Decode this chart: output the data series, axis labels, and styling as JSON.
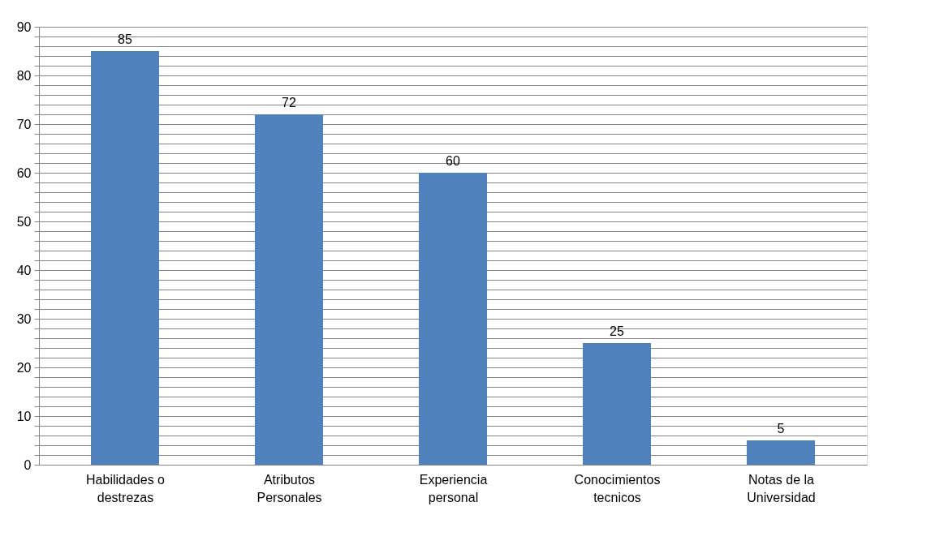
{
  "chart_data": {
    "type": "bar",
    "categories": [
      "Habilidades o\ndestrezas",
      "Atributos\nPersonales",
      "Experiencia\npersonal",
      "Conocimientos\ntecnicos",
      "Notas de la\nUniversidad"
    ],
    "values": [
      85,
      72,
      60,
      25,
      5
    ],
    "color": "#4f81bd",
    "ylim": [
      0,
      90
    ],
    "yticks": [
      0,
      {
        "value": 2,
        "label": null
      },
      {
        "value": 4,
        "label": null
      },
      {
        "value": 6,
        "label": null
      },
      {
        "value": 8,
        "label": null
      },
      10,
      {
        "value": 12,
        "label": null
      },
      {
        "value": 14,
        "label": null
      },
      {
        "value": 16,
        "label": null
      },
      {
        "value": 18,
        "label": null
      },
      20,
      {
        "value": 22,
        "label": null
      },
      {
        "value": 24,
        "label": null
      },
      {
        "value": 26,
        "label": null
      },
      {
        "value": 28,
        "label": null
      },
      30,
      {
        "value": 32,
        "label": null
      },
      {
        "value": 34,
        "label": null
      },
      {
        "value": 36,
        "label": null
      },
      {
        "value": 38,
        "label": null
      },
      40,
      {
        "value": 42,
        "label": null
      },
      {
        "value": 44,
        "label": null
      },
      {
        "value": 46,
        "label": null
      },
      {
        "value": 48,
        "label": null
      },
      50,
      {
        "value": 52,
        "label": null
      },
      {
        "value": 54,
        "label": null
      },
      {
        "value": 56,
        "label": null
      },
      {
        "value": 58,
        "label": null
      },
      60,
      {
        "value": 62,
        "label": null
      },
      {
        "value": 64,
        "label": null
      },
      {
        "value": 66,
        "label": null
      },
      {
        "value": 68,
        "label": null
      },
      70,
      {
        "value": 72,
        "label": null
      },
      {
        "value": 74,
        "label": null
      },
      {
        "value": 76,
        "label": null
      },
      {
        "value": 78,
        "label": null
      },
      80,
      {
        "value": 82,
        "label": null
      },
      {
        "value": 84,
        "label": null
      },
      {
        "value": 86,
        "label": null
      },
      {
        "value": 88,
        "label": null
      },
      90
    ],
    "grid": "y",
    "data_labels": true
  }
}
